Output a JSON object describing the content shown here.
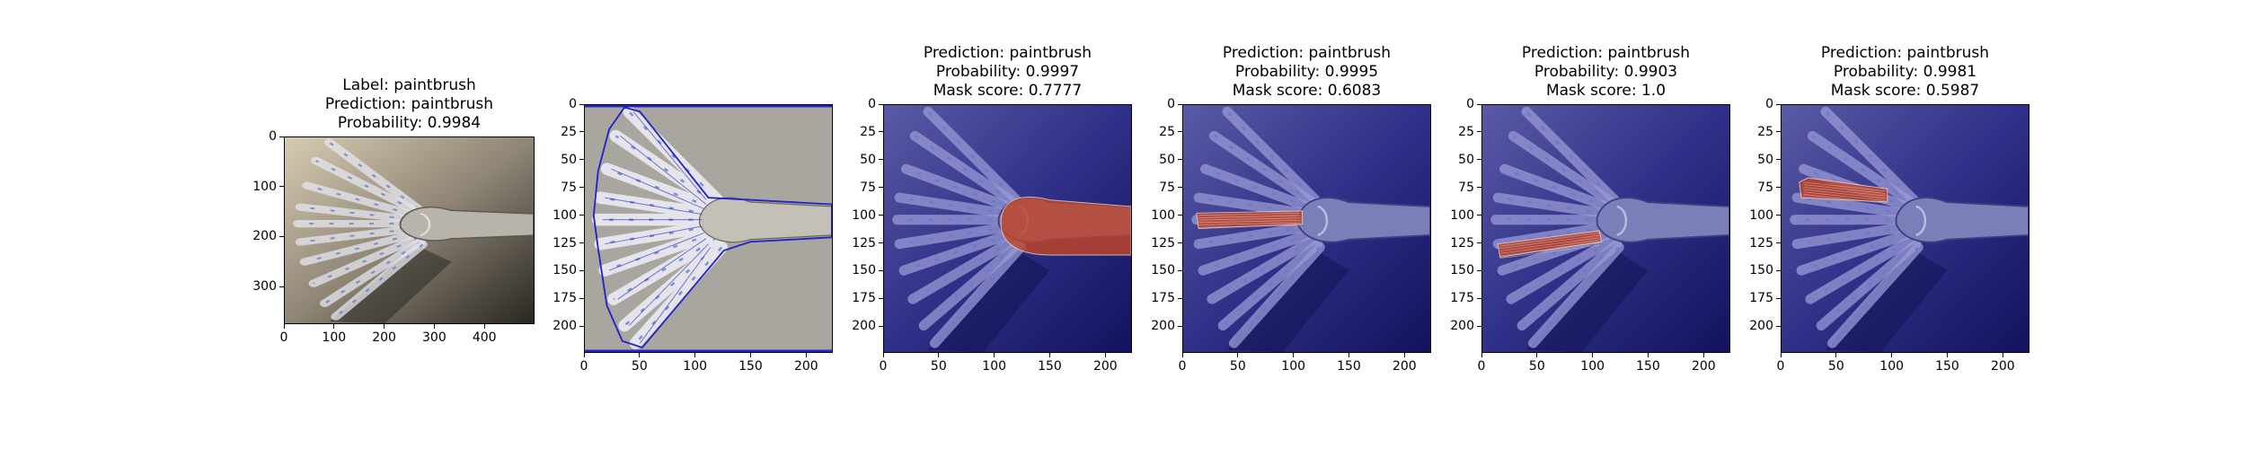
{
  "figure": {
    "panels": [
      {
        "id": "p1",
        "title_lines": [
          "Label: paintbrush",
          "Prediction: paintbrush",
          "Probability: 0.9984"
        ],
        "image": "photo",
        "xticks": [
          "0",
          "100",
          "200",
          "300",
          "400"
        ],
        "xtick_values": [
          0,
          100,
          200,
          300,
          400
        ],
        "yticks": [
          "0",
          "100",
          "200",
          "300"
        ],
        "ytick_values": [
          0,
          100,
          200,
          300
        ],
        "extent": [
          500,
          375
        ]
      },
      {
        "id": "p2",
        "title_lines": [],
        "image": "contours",
        "xticks": [
          "0",
          "50",
          "100",
          "150",
          "200"
        ],
        "xtick_values": [
          0,
          50,
          100,
          150,
          200
        ],
        "yticks": [
          "0",
          "25",
          "50",
          "75",
          "100",
          "125",
          "150",
          "175",
          "200"
        ],
        "ytick_values": [
          0,
          25,
          50,
          75,
          100,
          125,
          150,
          175,
          200
        ],
        "extent": [
          224,
          224
        ]
      },
      {
        "id": "p3",
        "title_lines": [
          "Prediction: paintbrush",
          "Probability: 0.9997",
          "Mask score: 0.7777"
        ],
        "image": "mask-ferrule",
        "xticks": [
          "0",
          "50",
          "100",
          "150",
          "200"
        ],
        "xtick_values": [
          0,
          50,
          100,
          150,
          200
        ],
        "yticks": [
          "0",
          "25",
          "50",
          "75",
          "100",
          "125",
          "150",
          "175",
          "200"
        ],
        "ytick_values": [
          0,
          25,
          50,
          75,
          100,
          125,
          150,
          175,
          200
        ],
        "extent": [
          224,
          224
        ]
      },
      {
        "id": "p4",
        "title_lines": [
          "Prediction: paintbrush",
          "Probability: 0.9995",
          "Mask score: 0.6083"
        ],
        "image": "mask-bristle-middle",
        "xticks": [
          "0",
          "50",
          "100",
          "150",
          "200"
        ],
        "xtick_values": [
          0,
          50,
          100,
          150,
          200
        ],
        "yticks": [
          "0",
          "25",
          "50",
          "75",
          "100",
          "125",
          "150",
          "175",
          "200"
        ],
        "ytick_values": [
          0,
          25,
          50,
          75,
          100,
          125,
          150,
          175,
          200
        ],
        "extent": [
          224,
          224
        ]
      },
      {
        "id": "p5",
        "title_lines": [
          "Prediction: paintbrush",
          "Probability: 0.9903",
          "Mask score: 1.0"
        ],
        "image": "mask-bristle-lower",
        "xticks": [
          "0",
          "50",
          "100",
          "150",
          "200"
        ],
        "xtick_values": [
          0,
          50,
          100,
          150,
          200
        ],
        "yticks": [
          "0",
          "25",
          "50",
          "75",
          "100",
          "125",
          "150",
          "175",
          "200"
        ],
        "ytick_values": [
          0,
          25,
          50,
          75,
          100,
          125,
          150,
          175,
          200
        ],
        "extent": [
          224,
          224
        ]
      },
      {
        "id": "p6",
        "title_lines": [
          "Prediction: paintbrush",
          "Probability: 0.9981",
          "Mask score: 0.5987"
        ],
        "image": "mask-bristle-upper",
        "xticks": [
          "0",
          "50",
          "100",
          "150",
          "200"
        ],
        "xtick_values": [
          0,
          50,
          100,
          150,
          200
        ],
        "yticks": [
          "0",
          "25",
          "50",
          "75",
          "100",
          "125",
          "150",
          "175",
          "200"
        ],
        "ytick_values": [
          0,
          25,
          50,
          75,
          100,
          125,
          150,
          175,
          200
        ],
        "extent": [
          224,
          224
        ]
      }
    ],
    "colors": {
      "tint": "#1b1d7a",
      "contour": "#2222cc",
      "mask": "#c0452a"
    }
  }
}
